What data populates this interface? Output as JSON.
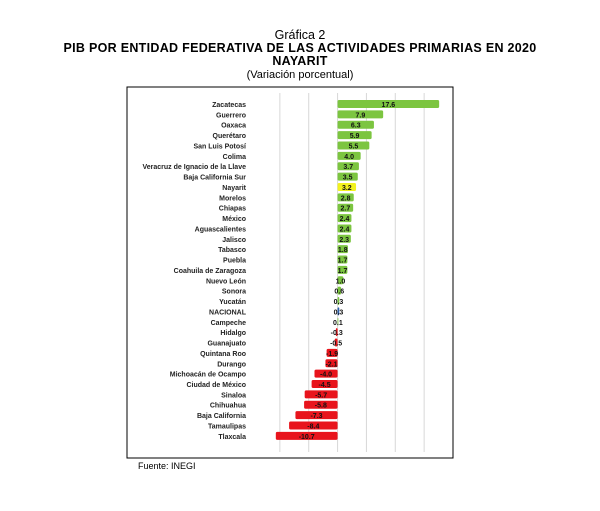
{
  "chart_data": {
    "type": "bar",
    "orientation": "horizontal",
    "title": "Gráfica 2",
    "subtitle": "PIB POR ENTIDAD FEDERATIVA DE LAS ACTIVIDADES PRIMARIAS EN 2020",
    "subtitle2": "NAYARIT",
    "note": "(Variación porcentual)",
    "source": "Fuente: INEGI",
    "xlim": [
      -15,
      20
    ],
    "grid": true,
    "categories": [
      "Zacatecas",
      "Guerrero",
      "Oaxaca",
      "Querétaro",
      "San Luis Potosí",
      "Colima",
      "Veracruz de Ignacio de la Llave",
      "Baja California Sur",
      "Nayarit",
      "Morelos",
      "Chiapas",
      "México",
      "Aguascalientes",
      "Jalisco",
      "Tabasco",
      "Puebla",
      "Coahuila de Zaragoza",
      "Nuevo León",
      "Sonora",
      "Yucatán",
      "NACIONAL",
      "Campeche",
      "Hidalgo",
      "Guanajuato",
      "Quintana Roo",
      "Durango",
      "Michoacán de Ocampo",
      "Ciudad de México",
      "Sinaloa",
      "Chihuahua",
      "Baja California",
      "Tamaulipas",
      "Tlaxcala"
    ],
    "values": [
      17.6,
      7.9,
      6.3,
      5.9,
      5.5,
      4.0,
      3.7,
      3.5,
      3.2,
      2.8,
      2.7,
      2.4,
      2.4,
      2.3,
      1.8,
      1.7,
      1.7,
      1.0,
      0.6,
      0.3,
      0.3,
      0.1,
      -0.3,
      -0.5,
      -1.9,
      -2.1,
      -4.0,
      -4.5,
      -5.7,
      -5.8,
      -7.3,
      -8.4,
      -10.7
    ],
    "labels": [
      "17.6",
      "7.9",
      "6.3",
      "5.9",
      "5.5",
      "4.0",
      "3.7",
      "3.5",
      "3.2",
      "2.8",
      "2.7",
      "2.4",
      "2.4",
      "2.3",
      "1.8",
      "1.7",
      "1.7",
      "1.0",
      "0.6",
      "0.3",
      "0.3",
      "0.1",
      "-0.3",
      "-0.5",
      "-1.9",
      "-2.1",
      "-4.0",
      "-4.5",
      "-5.7",
      "-5.8",
      "-7.3",
      "-8.4",
      "-10.7"
    ],
    "colors": {
      "positive": "#7cc540",
      "negative": "#e8141c",
      "highlight": "#f2f21e",
      "national": "#2c5fa8"
    },
    "highlight": "Nayarit",
    "national": "NACIONAL"
  }
}
